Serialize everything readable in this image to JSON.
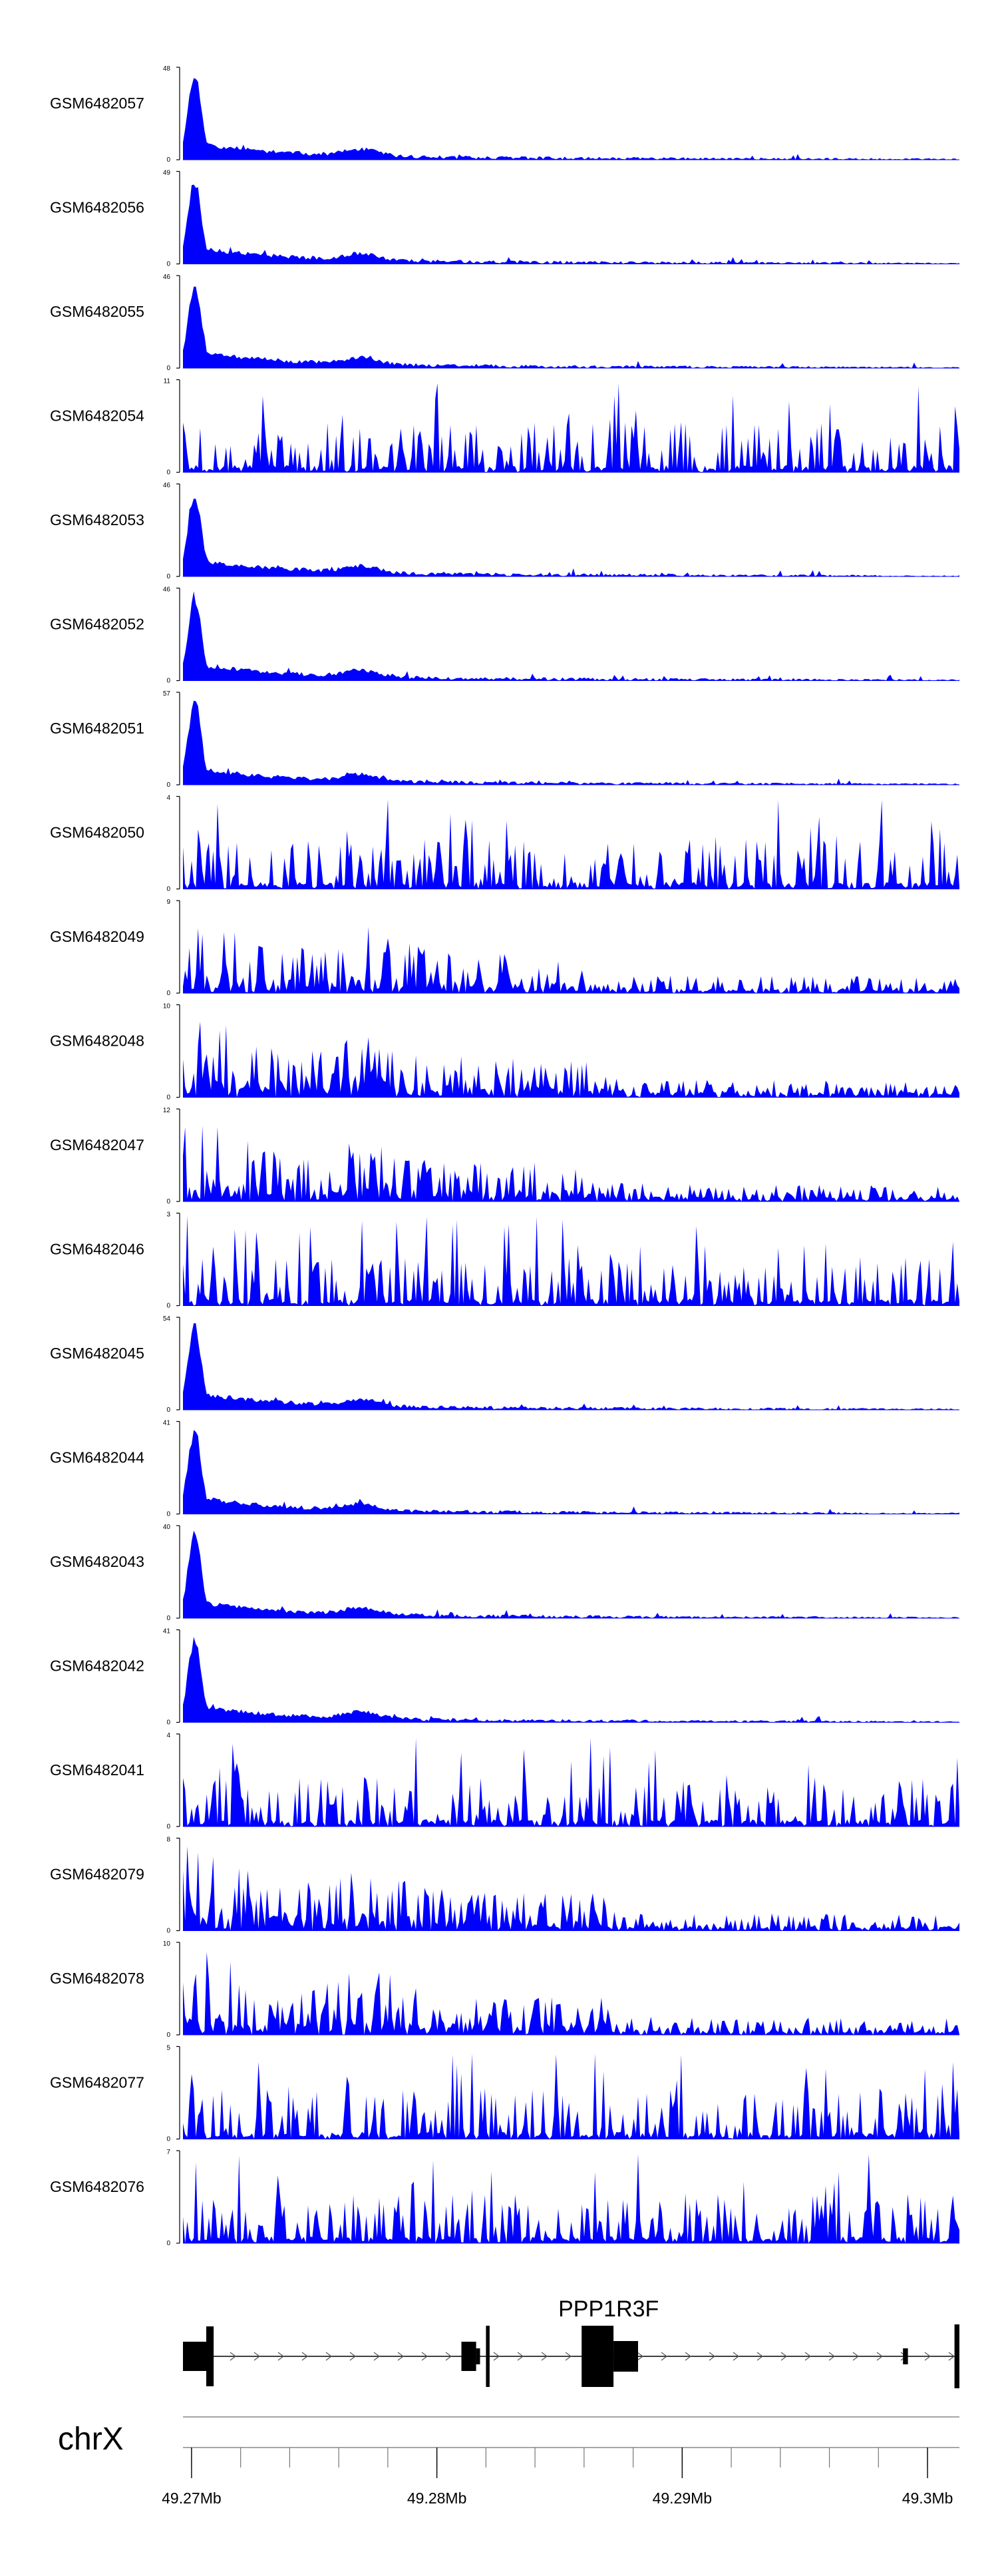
{
  "chart_data": {
    "type": "area",
    "title": "",
    "chromosome": "chrX",
    "region": {
      "start": 49269650,
      "end": 49301300
    },
    "series": [
      {
        "name": "GSM6482057",
        "max": 48,
        "min": 0,
        "seed": 11,
        "profile": "peak"
      },
      {
        "name": "GSM6482056",
        "max": 49,
        "min": 0,
        "seed": 23,
        "profile": "peak"
      },
      {
        "name": "GSM6482055",
        "max": 46,
        "min": 0,
        "seed": 37,
        "profile": "peak"
      },
      {
        "name": "GSM6482054",
        "max": 11,
        "min": 0,
        "seed": 41,
        "profile": "sparse"
      },
      {
        "name": "GSM6482053",
        "max": 46,
        "min": 0,
        "seed": 53,
        "profile": "peak"
      },
      {
        "name": "GSM6482052",
        "max": 46,
        "min": 0,
        "seed": 67,
        "profile": "peak"
      },
      {
        "name": "GSM6482051",
        "max": 57,
        "min": 0,
        "seed": 71,
        "profile": "peak"
      },
      {
        "name": "GSM6482050",
        "max": 4,
        "min": 0,
        "seed": 83,
        "profile": "sparse"
      },
      {
        "name": "GSM6482049",
        "max": 9,
        "min": 0,
        "seed": 97,
        "profile": "mid"
      },
      {
        "name": "GSM6482048",
        "max": 10,
        "min": 0,
        "seed": 101,
        "profile": "mid"
      },
      {
        "name": "GSM6482047",
        "max": 12,
        "min": 0,
        "seed": 113,
        "profile": "mid"
      },
      {
        "name": "GSM6482046",
        "max": 3,
        "min": 0,
        "seed": 127,
        "profile": "sparse"
      },
      {
        "name": "GSM6482045",
        "max": 54,
        "min": 0,
        "seed": 131,
        "profile": "peak"
      },
      {
        "name": "GSM6482044",
        "max": 41,
        "min": 0,
        "seed": 149,
        "profile": "peak"
      },
      {
        "name": "GSM6482043",
        "max": 40,
        "min": 0,
        "seed": 151,
        "profile": "peak"
      },
      {
        "name": "GSM6482042",
        "max": 41,
        "min": 0,
        "seed": 163,
        "profile": "peak"
      },
      {
        "name": "GSM6482041",
        "max": 4,
        "min": 0,
        "seed": 173,
        "profile": "sparse"
      },
      {
        "name": "GSM6482079",
        "max": 8,
        "min": 0,
        "seed": 181,
        "profile": "mid"
      },
      {
        "name": "GSM6482078",
        "max": 10,
        "min": 0,
        "seed": 191,
        "profile": "mid"
      },
      {
        "name": "GSM6482077",
        "max": 5,
        "min": 0,
        "seed": 197,
        "profile": "sparse"
      },
      {
        "name": "GSM6482076",
        "max": 7,
        "min": 0,
        "seed": 211,
        "profile": "sparse"
      }
    ],
    "gene": {
      "name": "PPP1R3F",
      "strand": "+",
      "exons": [
        {
          "start": 49269650,
          "end": 49270600,
          "thick": true
        },
        {
          "start": 49270600,
          "end": 49270900,
          "thick": true
        },
        {
          "start": 49281000,
          "end": 49281600,
          "thick": true
        },
        {
          "start": 49281600,
          "end": 49281760,
          "thick": false
        },
        {
          "start": 49282000,
          "end": 49282150,
          "thick": false
        },
        {
          "start": 49285900,
          "end": 49287200,
          "thick": true
        },
        {
          "start": 49287200,
          "end": 49288200,
          "thick": true
        },
        {
          "start": 49299000,
          "end": 49299200,
          "thick": false
        },
        {
          "start": 49301100,
          "end": 49301300,
          "thick": false
        }
      ]
    },
    "axis": {
      "ticks": [
        49270000,
        49280000,
        49290000,
        49300000
      ],
      "tick_labels": [
        "49.27Mb",
        "49.28Mb",
        "49.29Mb",
        "49.3Mb"
      ],
      "minor_step": 2000
    },
    "color": "#0000ff"
  }
}
